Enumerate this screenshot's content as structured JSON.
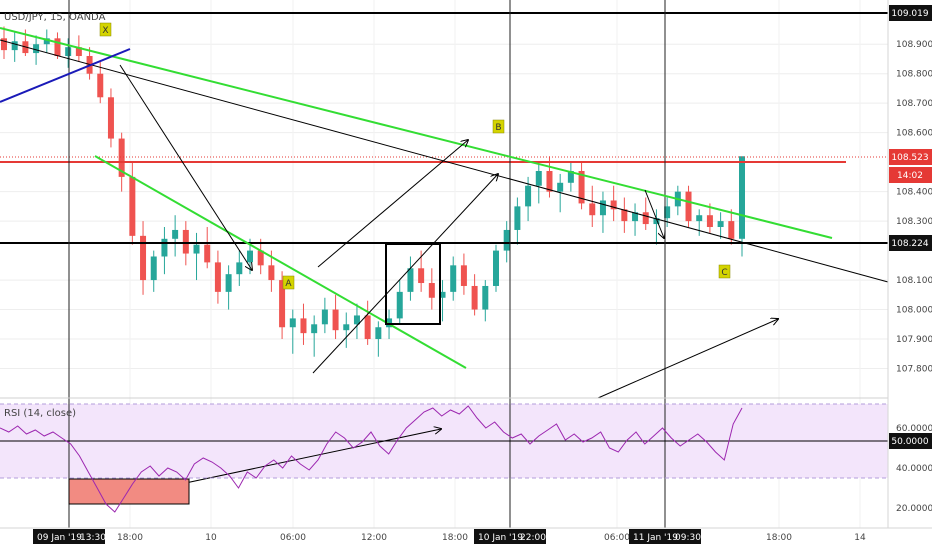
{
  "chart_data": {
    "type": "candlestick",
    "title": "USD/JPY, 15, OANDA",
    "symbol": "USD/JPY",
    "timeframe": "15",
    "source": "OANDA",
    "price_axis": {
      "min": 107.7,
      "max": 109.05,
      "ticks": [
        "108.900",
        "108.800",
        "108.700",
        "108.600",
        "108.400",
        "108.300",
        "108.100",
        "108.000",
        "107.900",
        "107.800"
      ]
    },
    "time_axis": {
      "ticks": [
        "18:00",
        "10",
        "06:00",
        "12:00",
        "18:00",
        "06:00",
        "18:00",
        "14"
      ],
      "highlighted": [
        "09 Jan '19",
        "13:30",
        "10 Jan '19",
        "22:00",
        "11 Jan '19",
        "09:30"
      ]
    },
    "price_labels": [
      {
        "value": "109.019",
        "kind": "line"
      },
      {
        "value": "108.523",
        "kind": "current"
      },
      {
        "value": "14:02",
        "kind": "countdown"
      },
      {
        "value": "108.224",
        "kind": "line"
      }
    ],
    "horizontal_levels": [
      109.019,
      108.224
    ],
    "current_price": 108.523,
    "vertical_markers": [
      "09 Jan '19 13:30",
      "10 Jan '19 22:00",
      "11 Jan '19 09:30"
    ],
    "pattern_labels": [
      "X",
      "A",
      "B",
      "C"
    ],
    "candles_ohlc_approx": [
      [
        108.92,
        108.96,
        108.85,
        108.88
      ],
      [
        108.88,
        108.94,
        108.84,
        108.91
      ],
      [
        108.91,
        108.95,
        108.86,
        108.87
      ],
      [
        108.87,
        108.93,
        108.83,
        108.9
      ],
      [
        108.9,
        108.95,
        108.87,
        108.92
      ],
      [
        108.92,
        108.94,
        108.85,
        108.86
      ],
      [
        108.86,
        108.92,
        108.82,
        108.89
      ],
      [
        108.89,
        108.93,
        108.84,
        108.86
      ],
      [
        108.86,
        108.89,
        108.78,
        108.8
      ],
      [
        108.8,
        108.84,
        108.7,
        108.72
      ],
      [
        108.72,
        108.75,
        108.55,
        108.58
      ],
      [
        108.58,
        108.6,
        108.4,
        108.45
      ],
      [
        108.45,
        108.5,
        108.22,
        108.25
      ],
      [
        108.25,
        108.3,
        108.05,
        108.1
      ],
      [
        108.1,
        108.2,
        108.06,
        108.18
      ],
      [
        108.18,
        108.28,
        108.12,
        108.24
      ],
      [
        108.24,
        108.32,
        108.18,
        108.27
      ],
      [
        108.27,
        108.3,
        108.15,
        108.19
      ],
      [
        108.19,
        108.26,
        108.1,
        108.22
      ],
      [
        108.22,
        108.28,
        108.14,
        108.16
      ],
      [
        108.16,
        108.2,
        108.02,
        108.06
      ],
      [
        108.06,
        108.15,
        108.0,
        108.12
      ],
      [
        108.12,
        108.2,
        108.08,
        108.16
      ],
      [
        108.16,
        108.24,
        108.12,
        108.2
      ],
      [
        108.2,
        108.24,
        108.12,
        108.15
      ],
      [
        108.15,
        108.2,
        108.06,
        108.1
      ],
      [
        108.1,
        108.13,
        107.9,
        107.94
      ],
      [
        107.94,
        108.0,
        107.85,
        107.97
      ],
      [
        107.97,
        108.02,
        107.88,
        107.92
      ],
      [
        107.92,
        107.98,
        107.84,
        107.95
      ],
      [
        107.95,
        108.04,
        107.92,
        108.0
      ],
      [
        108.0,
        108.05,
        107.9,
        107.93
      ],
      [
        107.93,
        107.99,
        107.87,
        107.95
      ],
      [
        107.95,
        108.02,
        107.9,
        107.98
      ],
      [
        107.98,
        108.03,
        107.88,
        107.9
      ],
      [
        107.9,
        107.96,
        107.84,
        107.94
      ],
      [
        107.94,
        108.0,
        107.9,
        107.97
      ],
      [
        107.97,
        108.1,
        107.95,
        108.06
      ],
      [
        108.06,
        108.18,
        108.03,
        108.14
      ],
      [
        108.14,
        108.2,
        108.06,
        108.09
      ],
      [
        108.09,
        108.14,
        108.0,
        108.04
      ],
      [
        108.04,
        108.1,
        107.96,
        108.06
      ],
      [
        108.06,
        108.18,
        108.03,
        108.15
      ],
      [
        108.15,
        108.19,
        108.05,
        108.08
      ],
      [
        108.08,
        108.12,
        107.98,
        108.0
      ],
      [
        108.0,
        108.1,
        107.96,
        108.08
      ],
      [
        108.08,
        108.22,
        108.06,
        108.2
      ],
      [
        108.2,
        108.3,
        108.16,
        108.27
      ],
      [
        108.27,
        108.38,
        108.22,
        108.35
      ],
      [
        108.35,
        108.45,
        108.3,
        108.42
      ],
      [
        108.42,
        108.5,
        108.36,
        108.47
      ],
      [
        108.47,
        108.52,
        108.38,
        108.4
      ],
      [
        108.4,
        108.46,
        108.33,
        108.43
      ],
      [
        108.43,
        108.5,
        108.4,
        108.47
      ],
      [
        108.47,
        108.5,
        108.34,
        108.36
      ],
      [
        108.36,
        108.42,
        108.28,
        108.32
      ],
      [
        108.32,
        108.4,
        108.26,
        108.37
      ],
      [
        108.37,
        108.42,
        108.3,
        108.34
      ],
      [
        108.34,
        108.38,
        108.26,
        108.3
      ],
      [
        108.3,
        108.36,
        108.25,
        108.33
      ],
      [
        108.33,
        108.38,
        108.27,
        108.29
      ],
      [
        108.29,
        108.34,
        108.22,
        108.31
      ],
      [
        108.31,
        108.38,
        108.28,
        108.35
      ],
      [
        108.35,
        108.42,
        108.32,
        108.4
      ],
      [
        108.4,
        108.42,
        108.28,
        108.3
      ],
      [
        108.3,
        108.34,
        108.25,
        108.32
      ],
      [
        108.32,
        108.36,
        108.26,
        108.28
      ],
      [
        108.28,
        108.33,
        108.24,
        108.3
      ],
      [
        108.3,
        108.34,
        108.22,
        108.24
      ],
      [
        108.24,
        108.3,
        108.18,
        108.52
      ]
    ],
    "rsi": {
      "label": "RSI (14, close)",
      "axis": {
        "min": 10,
        "max": 75,
        "ticks": [
          "60.0000",
          "40.0000",
          "20.0000"
        ]
      },
      "level_label": "50.0000",
      "overbought": 70,
      "oversold": 30,
      "values": [
        60,
        58,
        61,
        57,
        59,
        56,
        58,
        55,
        52,
        46,
        38,
        30,
        22,
        18,
        25,
        32,
        38,
        41,
        36,
        40,
        38,
        34,
        42,
        45,
        43,
        40,
        36,
        30,
        38,
        35,
        41,
        44,
        40,
        46,
        42,
        39,
        44,
        52,
        58,
        55,
        50,
        53,
        58,
        51,
        47,
        54,
        60,
        64,
        68,
        70,
        66,
        69,
        67,
        71,
        65,
        60,
        63,
        58,
        55,
        57,
        52,
        56,
        59,
        62,
        54,
        57,
        53,
        55,
        58,
        50,
        48,
        54,
        58,
        52,
        56,
        60,
        55,
        51,
        54,
        57,
        53,
        48,
        44,
        62,
        70
      ]
    }
  }
}
